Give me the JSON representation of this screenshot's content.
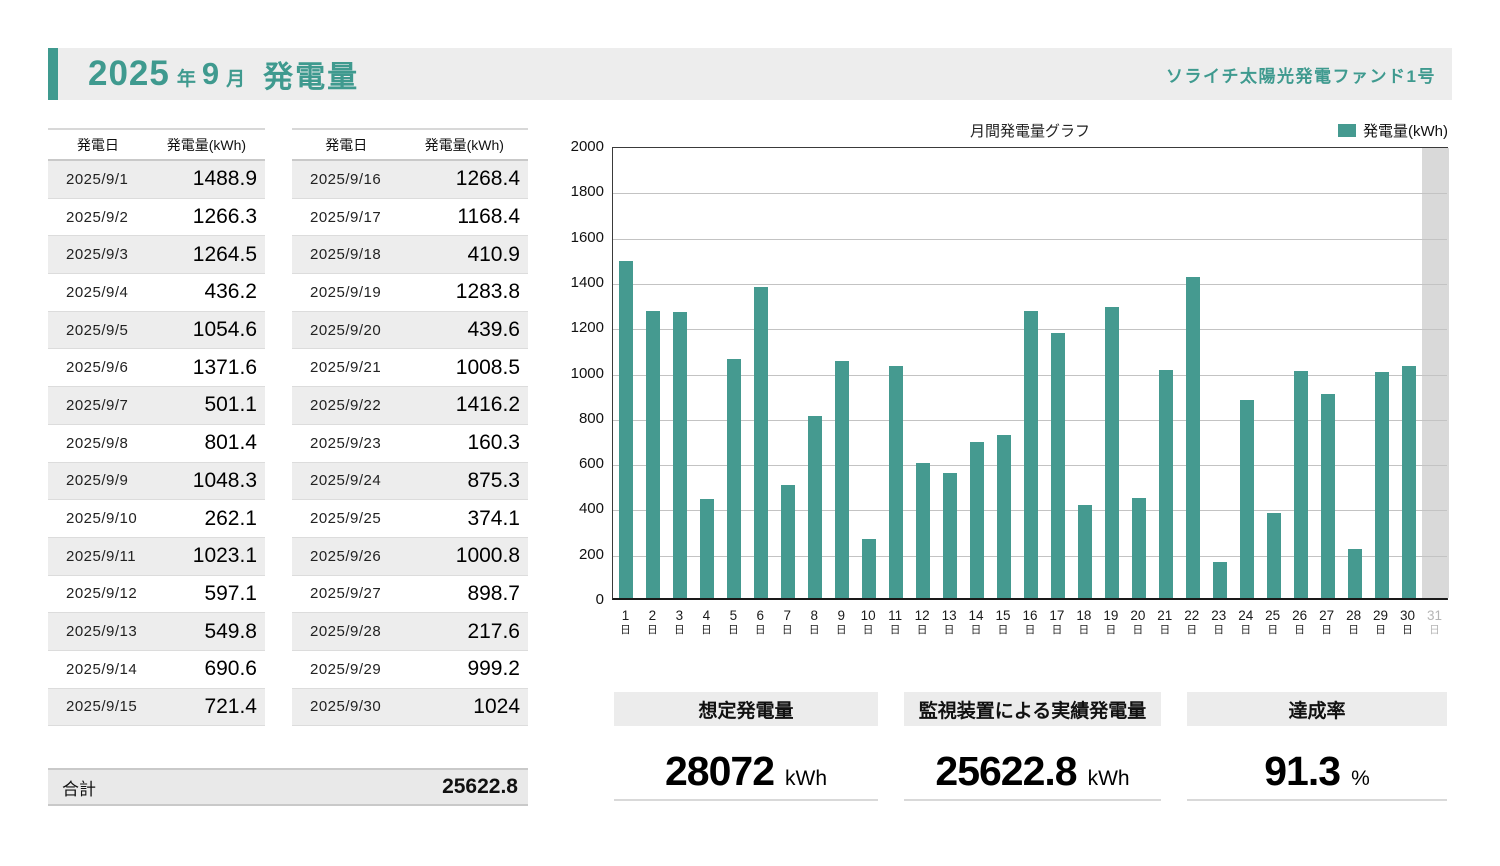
{
  "header": {
    "year": "2025",
    "year_unit": "年",
    "month": "9",
    "month_unit": "月",
    "subject": "発電量",
    "fund_name": "ソライチ太陽光発電ファンド1号",
    "accent_color": "#3F9A8F"
  },
  "tables": {
    "columns": {
      "date": "発電日",
      "value": "発電量(kWh)"
    },
    "left_rows": [
      {
        "date": "2025/9/1",
        "value": "1488.9"
      },
      {
        "date": "2025/9/2",
        "value": "1266.3"
      },
      {
        "date": "2025/9/3",
        "value": "1264.5"
      },
      {
        "date": "2025/9/4",
        "value": "436.2"
      },
      {
        "date": "2025/9/5",
        "value": "1054.6"
      },
      {
        "date": "2025/9/6",
        "value": "1371.6"
      },
      {
        "date": "2025/9/7",
        "value": "501.1"
      },
      {
        "date": "2025/9/8",
        "value": "801.4"
      },
      {
        "date": "2025/9/9",
        "value": "1048.3"
      },
      {
        "date": "2025/9/10",
        "value": "262.1"
      },
      {
        "date": "2025/9/11",
        "value": "1023.1"
      },
      {
        "date": "2025/9/12",
        "value": "597.1"
      },
      {
        "date": "2025/9/13",
        "value": "549.8"
      },
      {
        "date": "2025/9/14",
        "value": "690.6"
      },
      {
        "date": "2025/9/15",
        "value": "721.4"
      }
    ],
    "right_rows": [
      {
        "date": "2025/9/16",
        "value": "1268.4"
      },
      {
        "date": "2025/9/17",
        "value": "1168.4"
      },
      {
        "date": "2025/9/18",
        "value": "410.9"
      },
      {
        "date": "2025/9/19",
        "value": "1283.8"
      },
      {
        "date": "2025/9/20",
        "value": "439.6"
      },
      {
        "date": "2025/9/21",
        "value": "1008.5"
      },
      {
        "date": "2025/9/22",
        "value": "1416.2"
      },
      {
        "date": "2025/9/23",
        "value": "160.3"
      },
      {
        "date": "2025/9/24",
        "value": "875.3"
      },
      {
        "date": "2025/9/25",
        "value": "374.1"
      },
      {
        "date": "2025/9/26",
        "value": "1000.8"
      },
      {
        "date": "2025/9/27",
        "value": "898.7"
      },
      {
        "date": "2025/9/28",
        "value": "217.6"
      },
      {
        "date": "2025/9/29",
        "value": "999.2"
      },
      {
        "date": "2025/9/30",
        "value": "1024"
      }
    ],
    "total_label": "合計",
    "total_value": "25622.8"
  },
  "chart_data": {
    "type": "bar",
    "title": "月間発電量グラフ",
    "legend": "発電量(kWh)",
    "legend_position": "top-right",
    "categories": [
      "1",
      "2",
      "3",
      "4",
      "5",
      "6",
      "7",
      "8",
      "9",
      "10",
      "11",
      "12",
      "13",
      "14",
      "15",
      "16",
      "17",
      "18",
      "19",
      "20",
      "21",
      "22",
      "23",
      "24",
      "25",
      "26",
      "27",
      "28",
      "29",
      "30",
      "31"
    ],
    "category_suffix": "日",
    "values": [
      1488.9,
      1266.3,
      1264.5,
      436.2,
      1054.6,
      1371.6,
      501.1,
      801.4,
      1048.3,
      262.1,
      1023.1,
      597.1,
      549.8,
      690.6,
      721.4,
      1268.4,
      1168.4,
      410.9,
      1283.8,
      439.6,
      1008.5,
      1416.2,
      160.3,
      875.3,
      374.1,
      1000.8,
      898.7,
      217.6,
      999.2,
      1024
    ],
    "inactive_categories": [
      "31"
    ],
    "ylim": [
      0,
      2000
    ],
    "ytick_step": 200,
    "grid": true,
    "bar_color": "#459A90",
    "inactive_band_color": "#D9D9D9"
  },
  "summary": {
    "boxes": [
      {
        "label": "想定発電量",
        "value": "28072",
        "unit": "kWh"
      },
      {
        "label": "監視装置による実績発電量",
        "value": "25622.8",
        "unit": "kWh"
      },
      {
        "label": "達成率",
        "value": "91.3",
        "unit": "%"
      }
    ]
  }
}
